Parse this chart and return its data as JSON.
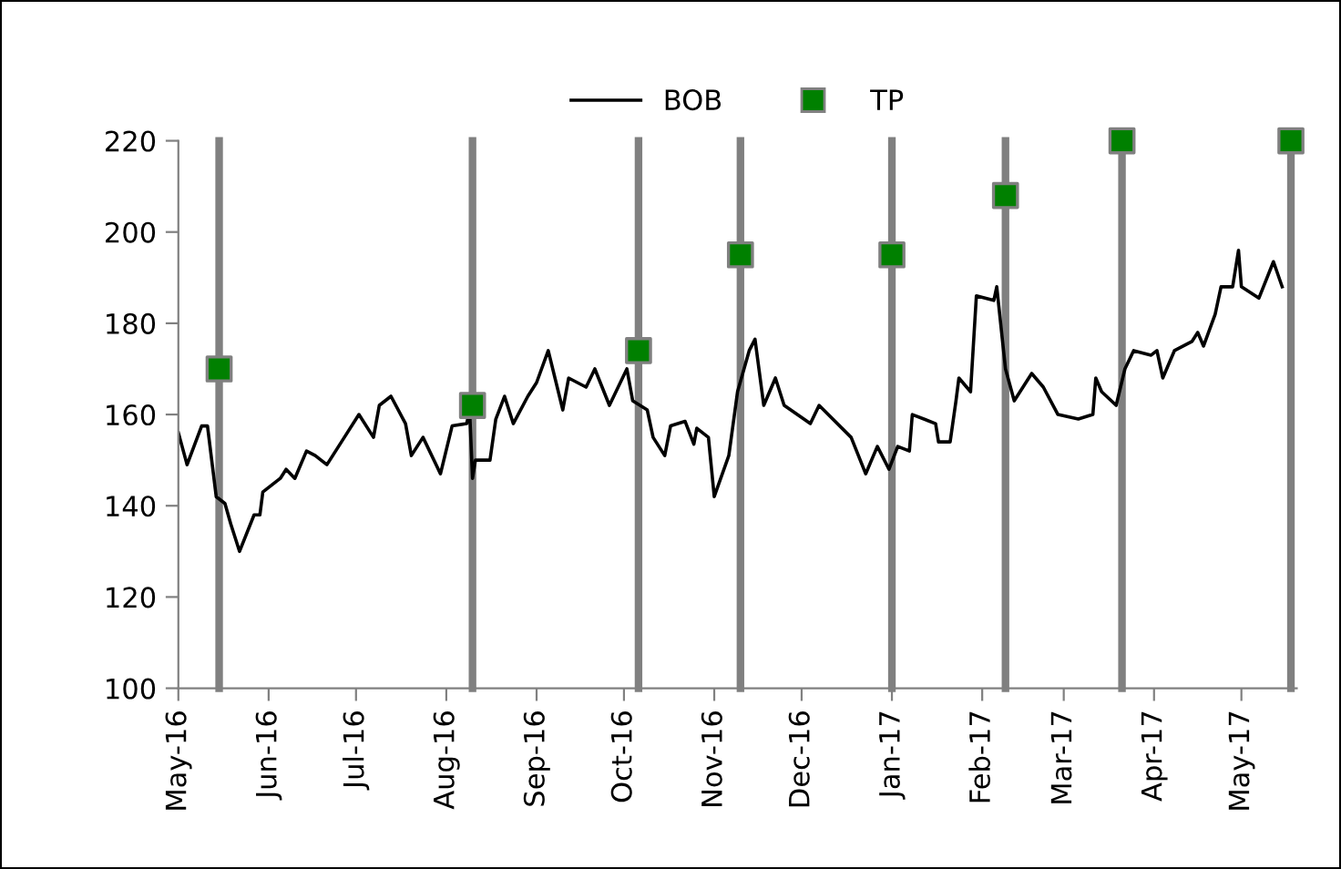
{
  "chart_data": {
    "type": "line",
    "xlim": [
      "2016-05-01",
      "2017-05-20"
    ],
    "xticks": [
      {
        "value": "2016-05-01",
        "label": "May-16"
      },
      {
        "value": "2016-06-01",
        "label": "Jun-16"
      },
      {
        "value": "2016-07-01",
        "label": "Jul-16"
      },
      {
        "value": "2016-08-01",
        "label": "Aug-16"
      },
      {
        "value": "2016-09-01",
        "label": "Sep-16"
      },
      {
        "value": "2016-10-01",
        "label": "Oct-16"
      },
      {
        "value": "2016-11-01",
        "label": "Nov-16"
      },
      {
        "value": "2016-12-01",
        "label": "Dec-16"
      },
      {
        "value": "2017-01-01",
        "label": "Jan-17"
      },
      {
        "value": "2017-02-01",
        "label": "Feb-17"
      },
      {
        "value": "2017-03-01",
        "label": "Mar-17"
      },
      {
        "value": "2017-04-01",
        "label": "Apr-17"
      },
      {
        "value": "2017-05-01",
        "label": "May-17"
      }
    ],
    "ylim": [
      100,
      220
    ],
    "yticks": [
      100,
      120,
      140,
      160,
      180,
      200,
      220
    ],
    "grid": false,
    "legend": "top",
    "series": [
      {
        "name": "BOB",
        "color": "#000000",
        "marker": "none",
        "line_style": "solid",
        "x": [
          "2016-05-01",
          "2016-05-04",
          "2016-05-09",
          "2016-05-11",
          "2016-05-14",
          "2016-05-17",
          "2016-05-19",
          "2016-05-22",
          "2016-05-27",
          "2016-05-29",
          "2016-05-30",
          "2016-06-05",
          "2016-06-07",
          "2016-06-10",
          "2016-06-14",
          "2016-06-17",
          "2016-06-21",
          "2016-06-26",
          "2016-07-02",
          "2016-07-07",
          "2016-07-09",
          "2016-07-13",
          "2016-07-18",
          "2016-07-20",
          "2016-07-24",
          "2016-07-30",
          "2016-08-03",
          "2016-08-08",
          "2016-08-09",
          "2016-08-10",
          "2016-08-11",
          "2016-08-16",
          "2016-08-18",
          "2016-08-21",
          "2016-08-24",
          "2016-08-29",
          "2016-09-01",
          "2016-09-05",
          "2016-09-10",
          "2016-09-12",
          "2016-09-18",
          "2016-09-21",
          "2016-09-26",
          "2016-10-02",
          "2016-10-04",
          "2016-10-09",
          "2016-10-11",
          "2016-10-15",
          "2016-10-17",
          "2016-10-22",
          "2016-10-25",
          "2016-10-26",
          "2016-10-30",
          "2016-11-01",
          "2016-11-06",
          "2016-11-09",
          "2016-11-13",
          "2016-11-15",
          "2016-11-18",
          "2016-11-22",
          "2016-11-25",
          "2016-12-04",
          "2016-12-07",
          "2016-12-18",
          "2016-12-23",
          "2016-12-27",
          "2016-12-31",
          "2017-01-03",
          "2017-01-07",
          "2017-01-08",
          "2017-01-16",
          "2017-01-17",
          "2017-01-21",
          "2017-01-23",
          "2017-01-24",
          "2017-01-28",
          "2017-01-30",
          "2017-02-05",
          "2017-02-06",
          "2017-02-09",
          "2017-02-12",
          "2017-02-18",
          "2017-02-22",
          "2017-02-27",
          "2017-03-06",
          "2017-03-11",
          "2017-03-12",
          "2017-03-14",
          "2017-03-19",
          "2017-03-22",
          "2017-03-25",
          "2017-03-31",
          "2017-04-02",
          "2017-04-04",
          "2017-04-08",
          "2017-04-14",
          "2017-04-16",
          "2017-04-18",
          "2017-04-22",
          "2017-04-24",
          "2017-04-28",
          "2017-04-30",
          "2017-05-01",
          "2017-05-07",
          "2017-05-12",
          "2017-05-15"
        ],
        "values": [
          156,
          149,
          157.5,
          157.5,
          142,
          140.5,
          136,
          130,
          138,
          138,
          143,
          146,
          148,
          146,
          152,
          151,
          149,
          154,
          160,
          155,
          162,
          164,
          158,
          151,
          155,
          147,
          157.5,
          158,
          161,
          146,
          150,
          150,
          159,
          164,
          158,
          164,
          167,
          174,
          161,
          168,
          166,
          170,
          162,
          170,
          163,
          161,
          155,
          151,
          157.5,
          158.5,
          153.5,
          157,
          155,
          142,
          151,
          165,
          174,
          176.5,
          162,
          168,
          162,
          158,
          162,
          155,
          147,
          153,
          148,
          153,
          152,
          160,
          158,
          154,
          154,
          163,
          168,
          165,
          186,
          185,
          188,
          170,
          163,
          169,
          166,
          160,
          159,
          160,
          168,
          165,
          162,
          170,
          174,
          173,
          174,
          168,
          174,
          176,
          178,
          175,
          182,
          188,
          188,
          196,
          188,
          185.5,
          193.5,
          188
        ]
      },
      {
        "name": "TP",
        "type": "scatter",
        "color": "#008000",
        "marker": "square",
        "x": [
          "2016-05-15",
          "2016-08-10",
          "2016-10-06",
          "2016-11-10",
          "2017-01-01",
          "2017-02-09",
          "2017-03-21",
          "2017-05-18"
        ],
        "values": [
          170,
          162,
          174,
          195,
          195,
          208,
          220,
          220
        ]
      }
    ],
    "ref_lines": [
      {
        "axis": "x",
        "value": "2016-05-15",
        "color": "#808080"
      },
      {
        "axis": "x",
        "value": "2016-08-10",
        "color": "#808080"
      },
      {
        "axis": "x",
        "value": "2016-10-06",
        "color": "#808080"
      },
      {
        "axis": "x",
        "value": "2016-11-10",
        "color": "#808080"
      },
      {
        "axis": "x",
        "value": "2017-01-01",
        "color": "#808080"
      },
      {
        "axis": "x",
        "value": "2017-02-09",
        "color": "#808080"
      },
      {
        "axis": "x",
        "value": "2017-03-21",
        "color": "#808080"
      },
      {
        "axis": "x",
        "value": "2017-05-18",
        "color": "#808080"
      }
    ]
  }
}
